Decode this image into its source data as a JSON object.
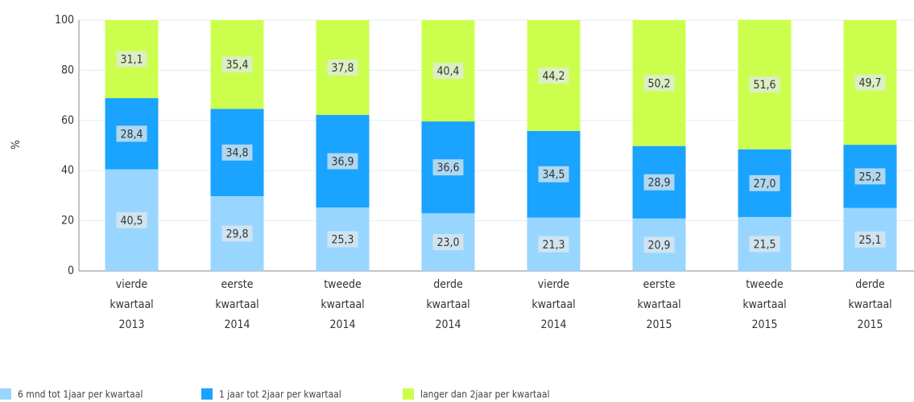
{
  "chart_data": {
    "type": "stacked-bar",
    "y_label": "%",
    "categories": [
      [
        "vierde",
        "kwartaal",
        "2013"
      ],
      [
        "eerste",
        "kwartaal",
        "2014"
      ],
      [
        "tweede",
        "kwartaal",
        "2014"
      ],
      [
        "derde",
        "kwartaal",
        "2014"
      ],
      [
        "vierde",
        "kwartaal",
        "2014"
      ],
      [
        "eerste",
        "kwartaal",
        "2015"
      ],
      [
        "tweede",
        "kwartaal",
        "2015"
      ],
      [
        "derde",
        "kwartaal",
        "2015"
      ]
    ],
    "series": [
      {
        "name": "6 mnd tot 1jaar per kwartaal",
        "color": "#99d6ff",
        "values": [
          40.5,
          29.8,
          25.3,
          23.0,
          21.3,
          20.9,
          21.5,
          25.1
        ],
        "value_labels": [
          "40,5",
          "29,8",
          "25,3",
          "23,0",
          "21,3",
          "20,9",
          "21,5",
          "25,1"
        ]
      },
      {
        "name": "1 jaar tot 2jaar per kwartaal",
        "color": "#1aa3ff",
        "values": [
          28.4,
          34.8,
          36.9,
          36.6,
          34.5,
          28.9,
          27.0,
          25.2
        ],
        "value_labels": [
          "28,4",
          "34,8",
          "36,9",
          "36,6",
          "34,5",
          "28,9",
          "27,0",
          "25,2"
        ]
      },
      {
        "name": "langer dan 2jaar per kwartaal",
        "color": "#ccff4d",
        "values": [
          31.1,
          35.4,
          37.8,
          40.4,
          44.2,
          50.2,
          51.6,
          49.7
        ],
        "value_labels": [
          "31,1",
          "35,4",
          "37,8",
          "40,4",
          "44,2",
          "50,2",
          "51,6",
          "49,7"
        ]
      }
    ],
    "ylim": [
      0,
      100
    ],
    "yticks": [
      0,
      20,
      40,
      60,
      80,
      100
    ],
    "grid": true,
    "legend": "bottom"
  }
}
